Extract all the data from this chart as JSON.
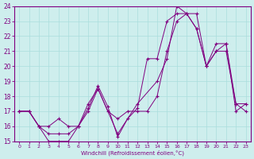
{
  "xlabel": "Windchill (Refroidissement éolien,°C)",
  "bg_color": "#ceeeed",
  "line_color": "#800080",
  "grid_color": "#aadddd",
  "xlim": [
    -0.5,
    23.5
  ],
  "ylim": [
    15,
    24
  ],
  "yticks": [
    15,
    16,
    17,
    18,
    19,
    20,
    21,
    22,
    23,
    24
  ],
  "xticks": [
    0,
    1,
    2,
    3,
    4,
    5,
    6,
    7,
    8,
    9,
    10,
    11,
    12,
    13,
    14,
    15,
    16,
    17,
    18,
    19,
    20,
    21,
    22,
    23
  ],
  "series": [
    {
      "x": [
        0,
        1,
        2,
        3,
        4,
        5,
        6,
        7,
        8,
        9,
        10,
        11,
        12,
        13,
        14,
        15,
        16,
        17,
        18,
        19,
        20,
        21,
        22,
        23
      ],
      "y": [
        17,
        17,
        16,
        15,
        15,
        15,
        16,
        17.2,
        18.7,
        17.3,
        15.3,
        16.5,
        17.2,
        20.5,
        20.5,
        23.0,
        23.5,
        23.5,
        22.5,
        20.0,
        21.5,
        21.5,
        17.5,
        17.5
      ]
    },
    {
      "x": [
        0,
        1,
        2,
        3,
        4,
        5,
        6,
        7,
        8,
        10,
        12,
        14,
        15,
        16,
        17,
        18,
        19,
        20,
        21,
        22,
        23
      ],
      "y": [
        17,
        17,
        16,
        15.5,
        15.5,
        15.5,
        16,
        17.5,
        18.5,
        15.5,
        17.5,
        19,
        20.5,
        24.0,
        23.5,
        23.5,
        20.0,
        21.0,
        21.0,
        17.5,
        17.0
      ]
    },
    {
      "x": [
        0,
        1,
        2,
        3,
        4,
        5,
        6,
        7,
        8,
        9,
        10,
        11,
        12,
        13,
        14,
        15,
        16,
        17,
        18,
        19,
        20,
        21,
        22,
        23
      ],
      "y": [
        17,
        17,
        16.0,
        16,
        16.5,
        16.0,
        16,
        17,
        18.5,
        17,
        16.5,
        17,
        17,
        17,
        18.0,
        21.0,
        23.0,
        23.5,
        22.5,
        20.0,
        21.0,
        21.5,
        17.0,
        17.5
      ]
    }
  ]
}
